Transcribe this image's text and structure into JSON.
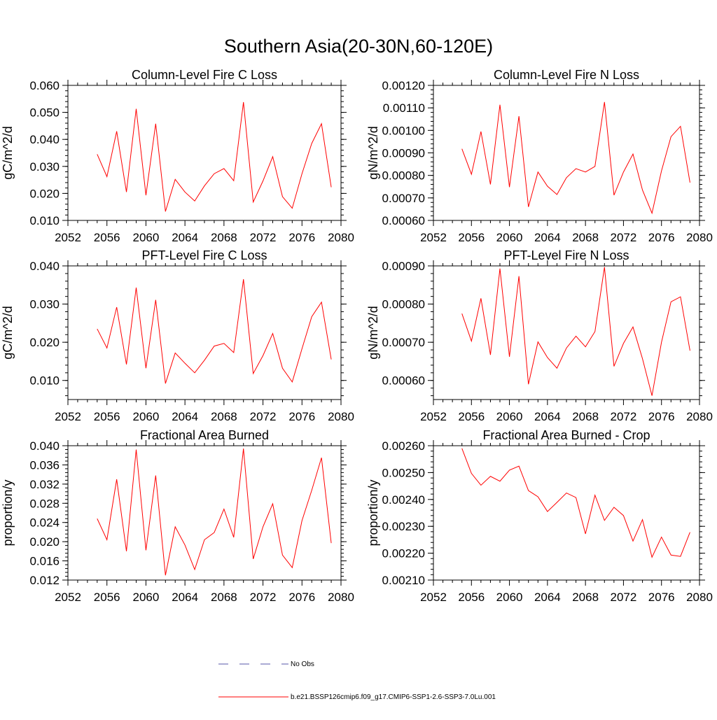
{
  "title": "Southern Asia(20-30N,60-120E)",
  "legend": {
    "entries": [
      {
        "label": "No Obs",
        "color": "#5555aa",
        "style": "dashed"
      },
      {
        "label": "b.e21.BSSP126cmip6.f09_g17.CMIP6-SSP1-2.6-SSP3-7.0Lu.001",
        "color": "#ff0000",
        "style": "solid"
      }
    ]
  },
  "chart_data": [
    {
      "type": "line",
      "title": "Column-Level Fire C Loss",
      "ylabel": "gC/m^2/d",
      "xlim": [
        2052,
        2080
      ],
      "ylim": [
        0.01,
        0.06
      ],
      "xticks": [
        2052,
        2056,
        2060,
        2064,
        2068,
        2072,
        2076,
        2080
      ],
      "yticks": [
        "0.010",
        "0.020",
        "0.030",
        "0.040",
        "0.050",
        "0.060"
      ],
      "x": [
        2055,
        2056,
        2057,
        2058,
        2059,
        2060,
        2061,
        2062,
        2063,
        2064,
        2065,
        2066,
        2067,
        2068,
        2069,
        2070,
        2071,
        2072,
        2073,
        2074,
        2075,
        2076,
        2077,
        2078,
        2079
      ],
      "series": [
        {
          "color": "#ff0000",
          "values": [
            0.0345,
            0.0262,
            0.043,
            0.0205,
            0.0513,
            0.0193,
            0.0458,
            0.0133,
            0.0252,
            0.0205,
            0.0172,
            0.0228,
            0.0273,
            0.0292,
            0.0247,
            0.0538,
            0.0168,
            0.0246,
            0.0336,
            0.0188,
            0.0145,
            0.0273,
            0.0385,
            0.0458,
            0.0223
          ]
        }
      ]
    },
    {
      "type": "line",
      "title": "Column-Level Fire N Loss",
      "ylabel": "gN/m^2/d",
      "xlim": [
        2052,
        2080
      ],
      "ylim": [
        0.0006,
        0.0012
      ],
      "xticks": [
        2052,
        2056,
        2060,
        2064,
        2068,
        2072,
        2076,
        2080
      ],
      "yticks": [
        "0.00060",
        "0.00070",
        "0.00080",
        "0.00090",
        "0.00100",
        "0.00110",
        "0.00120"
      ],
      "x": [
        2055,
        2056,
        2057,
        2058,
        2059,
        2060,
        2061,
        2062,
        2063,
        2064,
        2065,
        2066,
        2067,
        2068,
        2069,
        2070,
        2071,
        2072,
        2073,
        2074,
        2075,
        2076,
        2077,
        2078,
        2079
      ],
      "series": [
        {
          "color": "#ff0000",
          "values": [
            0.000918,
            0.000805,
            0.000995,
            0.00076,
            0.001114,
            0.000748,
            0.001063,
            0.00066,
            0.000815,
            0.000752,
            0.000715,
            0.00079,
            0.00083,
            0.000815,
            0.00084,
            0.001126,
            0.000712,
            0.000815,
            0.000895,
            0.000735,
            0.000632,
            0.00082,
            0.000972,
            0.001018,
            0.000768
          ]
        }
      ]
    },
    {
      "type": "line",
      "title": "PFT-Level Fire C Loss",
      "ylabel": "gC/m^2/d",
      "xlim": [
        2052,
        2080
      ],
      "ylim": [
        0.005,
        0.04
      ],
      "xticks": [
        2052,
        2056,
        2060,
        2064,
        2068,
        2072,
        2076,
        2080
      ],
      "yticks": [
        "0.010",
        "0.020",
        "0.030",
        "0.040"
      ],
      "x": [
        2055,
        2056,
        2057,
        2058,
        2059,
        2060,
        2061,
        2062,
        2063,
        2064,
        2065,
        2066,
        2067,
        2068,
        2069,
        2070,
        2071,
        2072,
        2073,
        2074,
        2075,
        2076,
        2077,
        2078,
        2079
      ],
      "series": [
        {
          "color": "#ff0000",
          "values": [
            0.0235,
            0.0185,
            0.0292,
            0.0142,
            0.0343,
            0.0132,
            0.0311,
            0.0092,
            0.0172,
            0.0145,
            0.012,
            0.0153,
            0.019,
            0.0197,
            0.0173,
            0.0365,
            0.0118,
            0.0165,
            0.0223,
            0.0132,
            0.0096,
            0.0183,
            0.0267,
            0.0305,
            0.0155
          ]
        }
      ]
    },
    {
      "type": "line",
      "title": "PFT-Level Fire N Loss",
      "ylabel": "gN/m^2/d",
      "xlim": [
        2052,
        2080
      ],
      "ylim": [
        0.00055,
        0.0009
      ],
      "xticks": [
        2052,
        2056,
        2060,
        2064,
        2068,
        2072,
        2076,
        2080
      ],
      "yticks": [
        "0.00060",
        "0.00070",
        "0.00080",
        "0.00090"
      ],
      "x": [
        2055,
        2056,
        2057,
        2058,
        2059,
        2060,
        2061,
        2062,
        2063,
        2064,
        2065,
        2066,
        2067,
        2068,
        2069,
        2070,
        2071,
        2072,
        2073,
        2074,
        2075,
        2076,
        2077,
        2078,
        2079
      ],
      "series": [
        {
          "color": "#ff0000",
          "values": [
            0.000775,
            0.000703,
            0.000815,
            0.000667,
            0.000893,
            0.000662,
            0.000873,
            0.00059,
            0.000701,
            0.00066,
            0.000632,
            0.000685,
            0.000716,
            0.000688,
            0.000728,
            0.000897,
            0.000637,
            0.000697,
            0.00074,
            0.000657,
            0.00056,
            0.0007,
            0.000806,
            0.000819,
            0.000678
          ]
        }
      ]
    },
    {
      "type": "line",
      "title": "Fractional Area Burned",
      "ylabel": "proportion/y",
      "xlim": [
        2052,
        2080
      ],
      "ylim": [
        0.012,
        0.04
      ],
      "xticks": [
        2052,
        2056,
        2060,
        2064,
        2068,
        2072,
        2076,
        2080
      ],
      "yticks": [
        "0.012",
        "0.016",
        "0.020",
        "0.024",
        "0.028",
        "0.032",
        "0.036",
        "0.040"
      ],
      "x": [
        2055,
        2056,
        2057,
        2058,
        2059,
        2060,
        2061,
        2062,
        2063,
        2064,
        2065,
        2066,
        2067,
        2068,
        2069,
        2070,
        2071,
        2072,
        2073,
        2074,
        2075,
        2076,
        2077,
        2078,
        2079
      ],
      "series": [
        {
          "color": "#ff0000",
          "values": [
            0.0248,
            0.0204,
            0.033,
            0.018,
            0.0392,
            0.0182,
            0.0338,
            0.013,
            0.0231,
            0.0193,
            0.0142,
            0.0204,
            0.0219,
            0.0268,
            0.0209,
            0.0394,
            0.0164,
            0.0231,
            0.0279,
            0.0172,
            0.0146,
            0.0244,
            0.0307,
            0.0375,
            0.0197
          ]
        }
      ]
    },
    {
      "type": "line",
      "title": "Fractional Area Burned - Crop",
      "ylabel": "proportion/y",
      "xlim": [
        2052,
        2080
      ],
      "ylim": [
        0.0021,
        0.0026
      ],
      "xticks": [
        2052,
        2056,
        2060,
        2064,
        2068,
        2072,
        2076,
        2080
      ],
      "yticks": [
        "0.00210",
        "0.00220",
        "0.00230",
        "0.00240",
        "0.00250",
        "0.00260"
      ],
      "x": [
        2055,
        2056,
        2057,
        2058,
        2059,
        2060,
        2061,
        2062,
        2063,
        2064,
        2065,
        2066,
        2067,
        2068,
        2069,
        2070,
        2071,
        2072,
        2073,
        2074,
        2075,
        2076,
        2077,
        2078,
        2079
      ],
      "series": [
        {
          "color": "#ff0000",
          "values": [
            0.00259,
            0.002497,
            0.002453,
            0.002486,
            0.002468,
            0.002509,
            0.002524,
            0.002433,
            0.00241,
            0.002355,
            0.002389,
            0.002424,
            0.002407,
            0.002272,
            0.002416,
            0.002322,
            0.002371,
            0.00234,
            0.002245,
            0.002325,
            0.002185,
            0.00226,
            0.002193,
            0.002188,
            0.002278
          ]
        }
      ]
    }
  ]
}
